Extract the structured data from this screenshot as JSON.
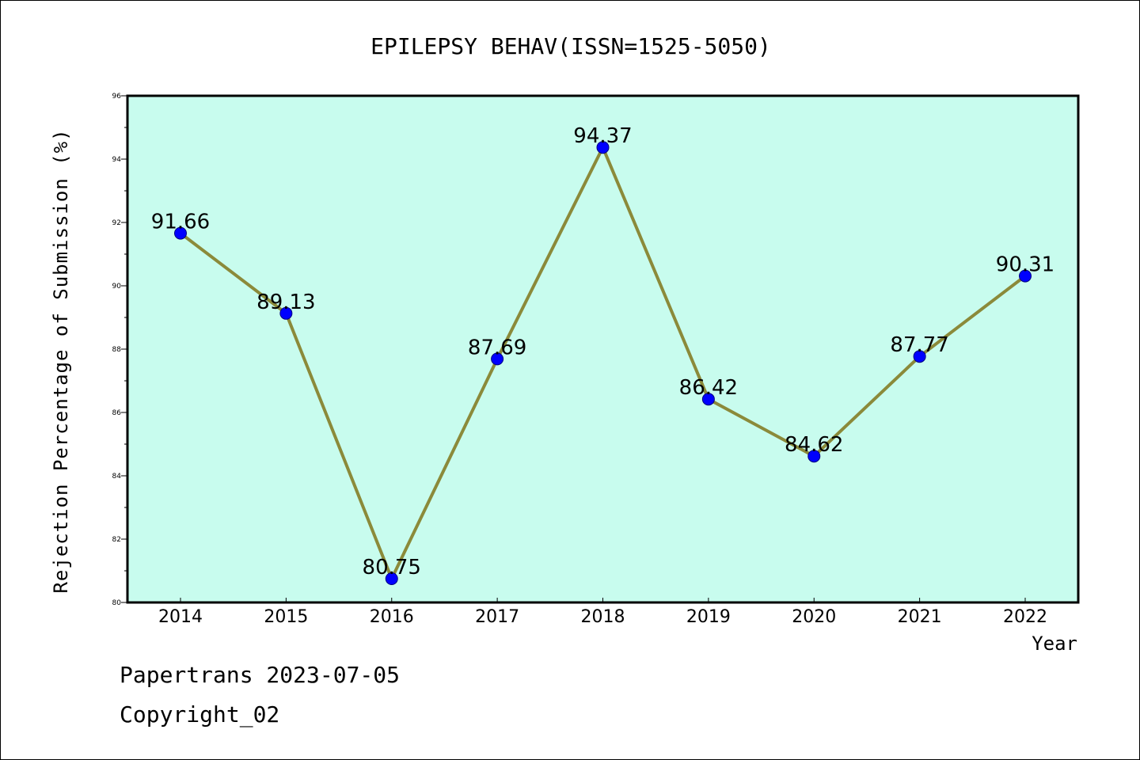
{
  "chart_data": {
    "type": "line",
    "title": "EPILEPSY BEHAV(ISSN=1525-5050)",
    "xlabel": "Year",
    "ylabel": "Rejection Percentage of Submission (%)",
    "categories": [
      "2014",
      "2015",
      "2016",
      "2017",
      "2018",
      "2019",
      "2020",
      "2021",
      "2022"
    ],
    "series": [
      {
        "values": [
          91.66,
          89.13,
          80.75,
          87.69,
          94.37,
          86.42,
          84.62,
          87.77,
          90.31
        ],
        "data_labels": [
          "91.66",
          "89.13",
          "80.75",
          "87.69",
          "94.37",
          "86.42",
          "84.62",
          "87.77",
          "90.31"
        ],
        "line_color": "#8b8a3a",
        "marker_color": "#0000ff"
      }
    ],
    "ylim": [
      80,
      96
    ],
    "y_ticks": [
      "80",
      "82",
      "84",
      "86",
      "88",
      "90",
      "92",
      "94",
      "96"
    ],
    "grid": false,
    "legend": "none",
    "plot_background": "#c8fcee"
  },
  "footer": {
    "line1": "Papertrans 2023-07-05",
    "line2": "Copyright_02"
  }
}
